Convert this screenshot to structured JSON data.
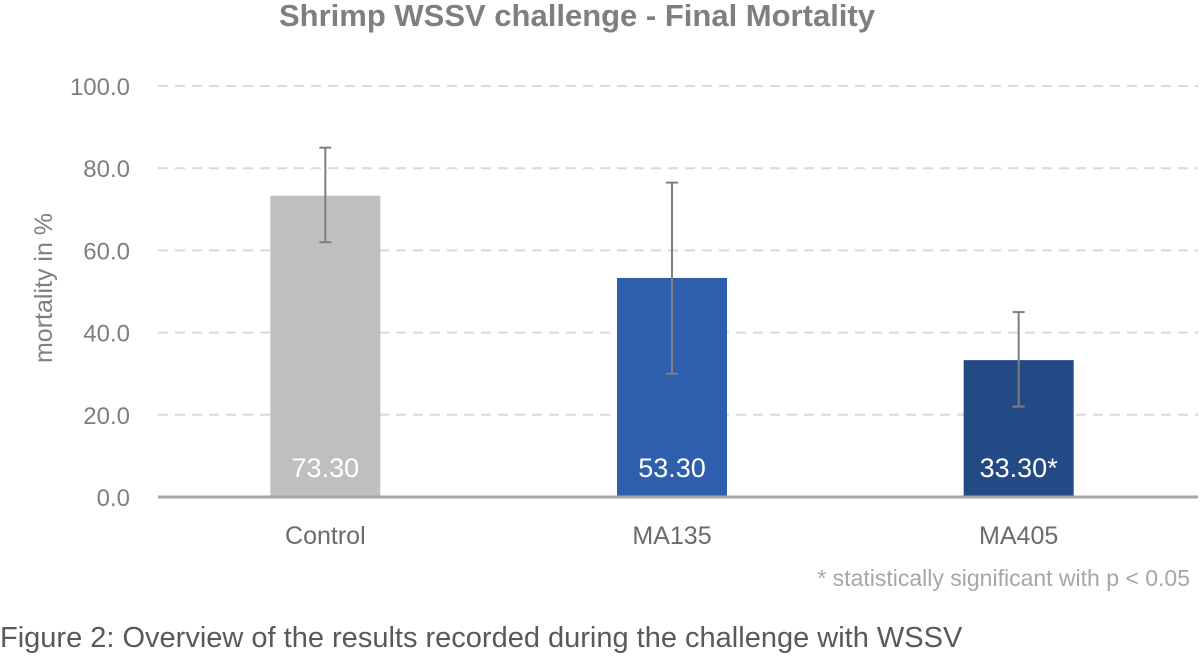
{
  "chart_data": {
    "type": "bar",
    "title": "Shrimp WSSV challenge - Final Mortality",
    "ylabel": "mortality in %",
    "xlabel": "",
    "ylim": [
      0,
      100
    ],
    "yticks": [
      "0.0",
      "20.0",
      "40.0",
      "60.0",
      "80.0",
      "100.0"
    ],
    "grid": true,
    "categories": [
      "Control",
      "MA135",
      "MA405"
    ],
    "values": [
      73.3,
      53.3,
      33.3
    ],
    "data_labels": [
      "73.30",
      "53.30",
      "33.30*"
    ],
    "error_bars": [
      {
        "low": 62.0,
        "high": 85.0
      },
      {
        "low": 30.0,
        "high": 76.5
      },
      {
        "low": 22.0,
        "high": 45.0
      }
    ],
    "colors": [
      "#bfbfbf",
      "#2e5fae",
      "#234a85"
    ]
  },
  "footnote": "* statistically significant with p < 0.05",
  "caption": "Figure 2: Overview of the results recorded during the challenge with WSSV"
}
